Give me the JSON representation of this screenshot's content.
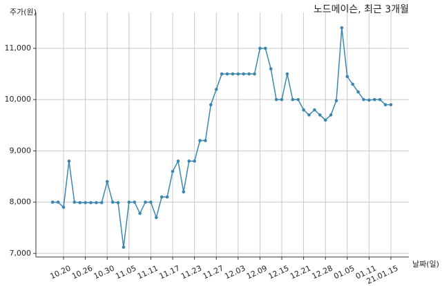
{
  "chart_data": {
    "type": "line",
    "title": "노드메이슨, 최근 3개월",
    "ylabel": "주가(원)",
    "xlabel": "날짜(일)",
    "categories": [
      null,
      null,
      "10.20",
      null,
      null,
      null,
      "10.26",
      null,
      null,
      null,
      "10.30",
      null,
      null,
      null,
      "11.05",
      null,
      null,
      null,
      "11.11",
      null,
      null,
      null,
      "11.17",
      null,
      null,
      null,
      "11.23",
      null,
      null,
      null,
      "11.27",
      null,
      null,
      null,
      "12.03",
      null,
      null,
      null,
      "12.09",
      null,
      null,
      null,
      "12.15",
      null,
      null,
      null,
      "12.21",
      null,
      null,
      null,
      "12.28",
      null,
      null,
      null,
      "01.05",
      null,
      null,
      null,
      "01.11",
      null,
      null,
      null,
      "21.01.15"
    ],
    "series": [
      {
        "name": "주가",
        "color": "#3a86b0",
        "values": [
          8000,
          8000,
          7900,
          8800,
          8000,
          7990,
          7990,
          7990,
          7990,
          7990,
          8400,
          8000,
          7990,
          7120,
          8000,
          8000,
          7780,
          8000,
          8000,
          7700,
          8100,
          8100,
          8600,
          8800,
          8200,
          8800,
          8800,
          9200,
          9200,
          9900,
          10200,
          10500,
          10500,
          10500,
          10500,
          10500,
          10500,
          10500,
          11000,
          11000,
          10600,
          10000,
          10000,
          10500,
          10000,
          10000,
          9800,
          9700,
          9800,
          9700,
          9600,
          9700,
          9980,
          11400,
          10450,
          10300,
          10150,
          10000,
          9990,
          10000,
          10000,
          9900,
          9900
        ]
      }
    ],
    "ylim": [
      6930,
      11700
    ],
    "yticks": [
      {
        "value": 7000,
        "label": "7,000"
      },
      {
        "value": 8000,
        "label": "8,000"
      },
      {
        "value": 9000,
        "label": "9,000"
      },
      {
        "value": 10000,
        "label": "10,000"
      },
      {
        "value": 11000,
        "label": "11,000"
      }
    ],
    "grid": true
  }
}
